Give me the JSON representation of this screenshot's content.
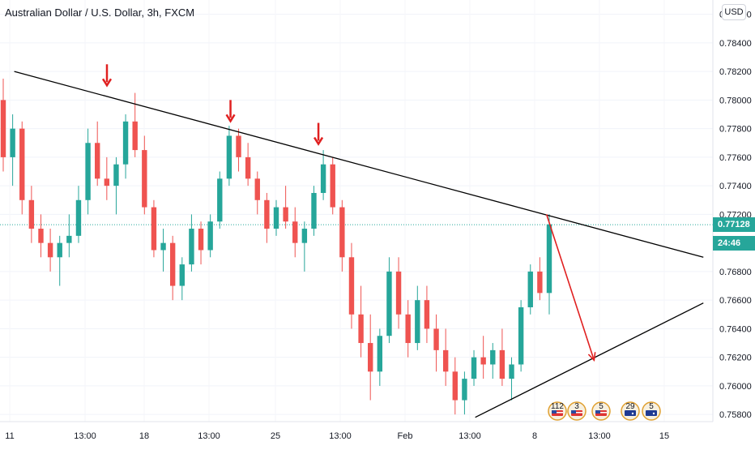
{
  "header": {
    "title": "Australian Dollar / U.S. Dollar, 3h, FXCM",
    "currency": "USD"
  },
  "price_tags": {
    "last_price": "0.77128",
    "countdown": "24:46",
    "last_color": "#26a69a",
    "countdown_color": "#26a69a"
  },
  "colors": {
    "up": "#26a69a",
    "down": "#ef5350",
    "trendline": "#000000",
    "arrow": "#e02020",
    "current_line": "#26a69a"
  },
  "chart_data": {
    "type": "candlestick",
    "title": "Australian Dollar / U.S. Dollar, 3h, FXCM",
    "yaxis": {
      "ticks": [
        "0.78600",
        "0.78400",
        "0.78200",
        "0.78000",
        "0.77800",
        "0.77600",
        "0.77400",
        "0.77200",
        "0.76800",
        "0.76600",
        "0.76400",
        "0.76200",
        "0.76000",
        "0.75800"
      ],
      "range": [
        0.7575,
        0.787
      ]
    },
    "xaxis": {
      "ticks": [
        "11",
        "13:00",
        "18",
        "13:00",
        "25",
        "13:00",
        "Feb",
        "13:00",
        "8",
        "13:00",
        "15"
      ],
      "range": [
        0,
        30
      ]
    },
    "candles": [
      [
        0.78,
        0.7815,
        0.775,
        0.776
      ],
      [
        0.776,
        0.779,
        0.774,
        0.778
      ],
      [
        0.778,
        0.7785,
        0.772,
        0.773
      ],
      [
        0.773,
        0.774,
        0.77,
        0.771
      ],
      [
        0.771,
        0.772,
        0.769,
        0.77
      ],
      [
        0.77,
        0.771,
        0.768,
        0.769
      ],
      [
        0.769,
        0.7705,
        0.767,
        0.77
      ],
      [
        0.77,
        0.772,
        0.769,
        0.7705
      ],
      [
        0.7705,
        0.774,
        0.77,
        0.773
      ],
      [
        0.773,
        0.778,
        0.772,
        0.777
      ],
      [
        0.777,
        0.7785,
        0.774,
        0.7745
      ],
      [
        0.7745,
        0.776,
        0.773,
        0.774
      ],
      [
        0.774,
        0.776,
        0.772,
        0.7755
      ],
      [
        0.7755,
        0.779,
        0.7745,
        0.7785
      ],
      [
        0.7785,
        0.7805,
        0.776,
        0.7765
      ],
      [
        0.7765,
        0.7775,
        0.772,
        0.7725
      ],
      [
        0.7725,
        0.773,
        0.769,
        0.7695
      ],
      [
        0.7695,
        0.771,
        0.768,
        0.77
      ],
      [
        0.77,
        0.7705,
        0.766,
        0.767
      ],
      [
        0.767,
        0.769,
        0.766,
        0.7685
      ],
      [
        0.7685,
        0.772,
        0.768,
        0.771
      ],
      [
        0.771,
        0.7715,
        0.7685,
        0.7695
      ],
      [
        0.7695,
        0.772,
        0.769,
        0.7715
      ],
      [
        0.7715,
        0.775,
        0.771,
        0.7745
      ],
      [
        0.7745,
        0.7782,
        0.774,
        0.7775
      ],
      [
        0.7775,
        0.778,
        0.775,
        0.776
      ],
      [
        0.776,
        0.777,
        0.774,
        0.7745
      ],
      [
        0.7745,
        0.775,
        0.772,
        0.773
      ],
      [
        0.773,
        0.7735,
        0.77,
        0.771
      ],
      [
        0.771,
        0.773,
        0.7705,
        0.7725
      ],
      [
        0.7725,
        0.774,
        0.771,
        0.7715
      ],
      [
        0.7715,
        0.7725,
        0.769,
        0.77
      ],
      [
        0.77,
        0.7715,
        0.768,
        0.771
      ],
      [
        0.771,
        0.774,
        0.7705,
        0.7735
      ],
      [
        0.7735,
        0.7765,
        0.773,
        0.7755
      ],
      [
        0.7755,
        0.776,
        0.772,
        0.7725
      ],
      [
        0.7725,
        0.773,
        0.768,
        0.769
      ],
      [
        0.769,
        0.77,
        0.764,
        0.765
      ],
      [
        0.765,
        0.767,
        0.762,
        0.763
      ],
      [
        0.763,
        0.765,
        0.759,
        0.761
      ],
      [
        0.761,
        0.764,
        0.76,
        0.7635
      ],
      [
        0.7635,
        0.769,
        0.763,
        0.768
      ],
      [
        0.768,
        0.769,
        0.764,
        0.765
      ],
      [
        0.765,
        0.766,
        0.762,
        0.763
      ],
      [
        0.763,
        0.767,
        0.7625,
        0.766
      ],
      [
        0.766,
        0.767,
        0.763,
        0.764
      ],
      [
        0.764,
        0.765,
        0.761,
        0.7625
      ],
      [
        0.7625,
        0.764,
        0.76,
        0.761
      ],
      [
        0.761,
        0.762,
        0.758,
        0.759
      ],
      [
        0.759,
        0.761,
        0.758,
        0.7605
      ],
      [
        0.7605,
        0.7625,
        0.76,
        0.762
      ],
      [
        0.762,
        0.7635,
        0.7605,
        0.7615
      ],
      [
        0.7615,
        0.763,
        0.7605,
        0.7625
      ],
      [
        0.7625,
        0.764,
        0.76,
        0.7605
      ],
      [
        0.7605,
        0.762,
        0.759,
        0.7615
      ],
      [
        0.7615,
        0.766,
        0.761,
        0.7655
      ],
      [
        0.7655,
        0.7685,
        0.765,
        0.768
      ],
      [
        0.768,
        0.769,
        0.766,
        0.7665
      ],
      [
        0.7665,
        0.772,
        0.765,
        0.7713
      ]
    ],
    "annotations": {
      "upper_trendline": [
        [
          0.6,
          0.782
        ],
        [
          29.6,
          0.769
        ]
      ],
      "lower_trendline": [
        [
          20.0,
          0.7578
        ],
        [
          29.6,
          0.7658
        ]
      ],
      "down_markers": [
        [
          4.5,
          0.7808
        ],
        [
          9.7,
          0.7783
        ],
        [
          13.4,
          0.7767
        ]
      ],
      "projection_arrow": [
        [
          23.0,
          0.772
        ],
        [
          25.0,
          0.7618
        ]
      ],
      "current_price": 0.77128
    }
  },
  "event_badges": [
    {
      "label": "112",
      "flag": "US"
    },
    {
      "label": "3",
      "flag": "US"
    },
    {
      "label": "5",
      "flag": "US"
    },
    {
      "label": "29",
      "flag": "AU"
    },
    {
      "label": "5",
      "flag": "AU"
    }
  ]
}
